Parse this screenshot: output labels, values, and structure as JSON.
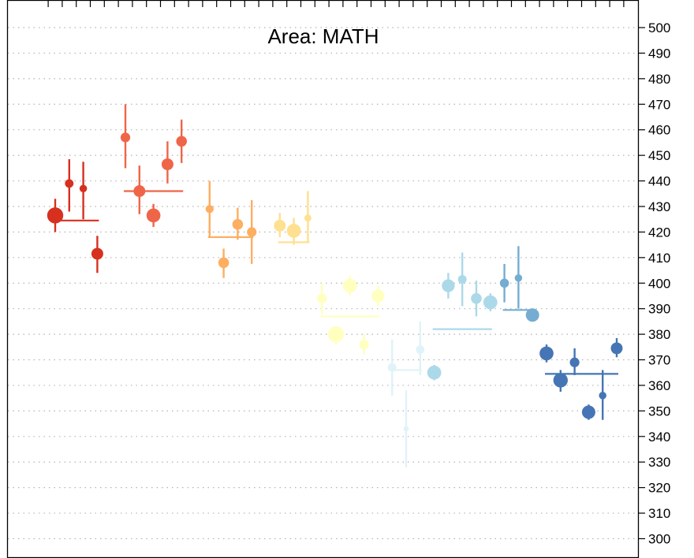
{
  "chart_data": {
    "type": "scatter",
    "title": "Area: MATH",
    "xlabel": "",
    "ylabel": "",
    "ylim": [
      290,
      510
    ],
    "yticks": [
      300,
      310,
      320,
      330,
      340,
      350,
      360,
      370,
      380,
      390,
      400,
      410,
      420,
      430,
      440,
      450,
      460,
      470,
      480,
      490,
      500
    ],
    "ytick_labels": [
      "300",
      "310",
      "320",
      "330",
      "340",
      "350",
      "360",
      "370",
      "380",
      "390",
      "400",
      "410",
      "420",
      "430",
      "440",
      "450",
      "460",
      "470",
      "480",
      "490",
      "500"
    ],
    "grid": true,
    "groups": [
      {
        "color": "#d7301f",
        "mean": 424.5,
        "points": [
          {
            "x": 1,
            "y": 426.5,
            "lo": 420,
            "hi": 433,
            "size": 3
          },
          {
            "x": 2,
            "y": 439,
            "lo": 428,
            "hi": 448.5,
            "size": 1.6
          },
          {
            "x": 3,
            "y": 437,
            "lo": 425,
            "hi": 447.5,
            "size": 1.4
          },
          {
            "x": 4,
            "y": 411.5,
            "lo": 404,
            "hi": 418.5,
            "size": 2.2
          }
        ]
      },
      {
        "color": "#ef6548",
        "mean": 436,
        "points": [
          {
            "x": 6,
            "y": 457,
            "lo": 445,
            "hi": 470,
            "size": 1.8
          },
          {
            "x": 7,
            "y": 436,
            "lo": 427,
            "hi": 446,
            "size": 2.2
          },
          {
            "x": 8,
            "y": 426.5,
            "lo": 422,
            "hi": 431,
            "size": 2.6
          },
          {
            "x": 9,
            "y": 446.5,
            "lo": 439,
            "hi": 455.5,
            "size": 2.2
          },
          {
            "x": 10,
            "y": 455.5,
            "lo": 447,
            "hi": 464,
            "size": 2.0
          }
        ]
      },
      {
        "color": "#fdae61",
        "mean": 418,
        "points": [
          {
            "x": 12,
            "y": 429,
            "lo": 418,
            "hi": 440,
            "size": 1.5
          },
          {
            "x": 13,
            "y": 408,
            "lo": 402,
            "hi": 413.5,
            "size": 2.0
          },
          {
            "x": 14,
            "y": 423,
            "lo": 417,
            "hi": 429.5,
            "size": 2.0
          },
          {
            "x": 15,
            "y": 420,
            "lo": 407.5,
            "hi": 432.5,
            "size": 1.8
          }
        ]
      },
      {
        "color": "#fee090",
        "mean": 416,
        "points": [
          {
            "x": 17,
            "y": 422.5,
            "lo": 418,
            "hi": 427.5,
            "size": 2.2
          },
          {
            "x": 18,
            "y": 420.5,
            "lo": 415,
            "hi": 425.5,
            "size": 2.6
          },
          {
            "x": 19,
            "y": 425.5,
            "lo": 416,
            "hi": 436,
            "size": 1.3
          }
        ]
      },
      {
        "color": "#ffffbf",
        "mean": 387,
        "points": [
          {
            "x": 20,
            "y": 394,
            "lo": 388,
            "hi": 400,
            "size": 1.8
          },
          {
            "x": 21,
            "y": 380,
            "lo": 376,
            "hi": 383,
            "size": 3
          },
          {
            "x": 22,
            "y": 399,
            "lo": 395,
            "hi": 403,
            "size": 2.6
          },
          {
            "x": 23,
            "y": 376,
            "lo": 372,
            "hi": 380,
            "size": 1.8
          },
          {
            "x": 24,
            "y": 395,
            "lo": 391,
            "hi": 399,
            "size": 2.4
          }
        ]
      },
      {
        "color": "#e0f3f8",
        "mean": 366,
        "points": [
          {
            "x": 25,
            "y": 367,
            "lo": 356,
            "hi": 378,
            "size": 1.6
          },
          {
            "x": 26,
            "y": 343,
            "lo": 328,
            "hi": 358,
            "size": 1.0
          },
          {
            "x": 27,
            "y": 374,
            "lo": 364,
            "hi": 385,
            "size": 1.6
          }
        ]
      },
      {
        "color": "#abd9e9",
        "mean": 382,
        "points": [
          {
            "x": 28,
            "y": 365,
            "lo": 362,
            "hi": 368,
            "size": 2.6
          },
          {
            "x": 29,
            "y": 399,
            "lo": 394,
            "hi": 404,
            "size": 2.4
          },
          {
            "x": 30,
            "y": 401.5,
            "lo": 391,
            "hi": 412,
            "size": 1.6
          },
          {
            "x": 31,
            "y": 394,
            "lo": 387,
            "hi": 401,
            "size": 2.0
          },
          {
            "x": 32,
            "y": 392.5,
            "lo": 389,
            "hi": 396,
            "size": 2.6
          }
        ]
      },
      {
        "color": "#74add1",
        "mean": 389.5,
        "points": [
          {
            "x": 33,
            "y": 400,
            "lo": 392.5,
            "hi": 407.5,
            "size": 1.7
          },
          {
            "x": 34,
            "y": 402,
            "lo": 390,
            "hi": 414.5,
            "size": 1.4
          },
          {
            "x": 35,
            "y": 387.5,
            "lo": 385,
            "hi": 390,
            "size": 2.5
          }
        ]
      },
      {
        "color": "#4575b4",
        "mean": 364.5,
        "points": [
          {
            "x": 36,
            "y": 372.5,
            "lo": 369,
            "hi": 376,
            "size": 2.6
          },
          {
            "x": 37,
            "y": 362,
            "lo": 357.5,
            "hi": 366,
            "size": 2.7
          },
          {
            "x": 38,
            "y": 369,
            "lo": 364,
            "hi": 374.5,
            "size": 1.8
          },
          {
            "x": 39,
            "y": 349.5,
            "lo": 346.5,
            "hi": 352.5,
            "size": 2.5
          },
          {
            "x": 40,
            "y": 356,
            "lo": 346.5,
            "hi": 366,
            "size": 1.4
          },
          {
            "x": 41,
            "y": 374.5,
            "lo": 371,
            "hi": 378.5,
            "size": 2.2
          }
        ]
      }
    ]
  }
}
